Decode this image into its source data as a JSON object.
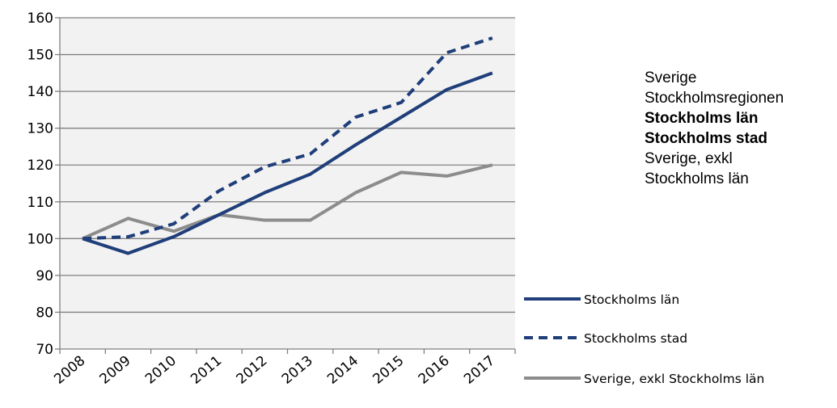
{
  "chart_data": {
    "type": "line",
    "title": "",
    "xlabel": "",
    "ylabel": "",
    "x": [
      "2008",
      "2009",
      "2010",
      "2011",
      "2012",
      "2013",
      "2014",
      "2015",
      "2016",
      "2017"
    ],
    "ylim": [
      70,
      160
    ],
    "yticks": [
      70,
      80,
      90,
      100,
      110,
      120,
      130,
      140,
      150,
      160
    ],
    "grid": true,
    "plot_background": "#f2f2f2",
    "legend_position": "right",
    "series": [
      {
        "name": "Stockholms län",
        "style": "solid",
        "color": "#1f3e7a",
        "values": [
          100,
          96,
          100.5,
          106.5,
          112.5,
          117.5,
          125.5,
          133,
          140.5,
          145
        ]
      },
      {
        "name": "Stockholms stad",
        "style": "dashed",
        "color": "#1f3e7a",
        "values": [
          100,
          100.5,
          104,
          113,
          119.5,
          123,
          133,
          137,
          150.5,
          154.5
        ]
      },
      {
        "name": "Sverige, exkl Stockholms län",
        "style": "solid",
        "color": "#8c8c8c",
        "values": [
          100,
          105.5,
          102,
          106.5,
          105,
          105,
          112.5,
          118,
          117,
          120
        ]
      }
    ]
  },
  "side_table": {
    "rows": [
      {
        "text": "Sverige",
        "bold": false
      },
      {
        "text": "Stockholmsregionen",
        "bold": false
      },
      {
        "text": "Stockholms län",
        "bold": true
      },
      {
        "text": "Stockholms stad",
        "bold": true
      },
      {
        "text": "Sverige, exkl",
        "bold": false
      },
      {
        "text": "Stockholms län",
        "bold": false
      }
    ]
  }
}
